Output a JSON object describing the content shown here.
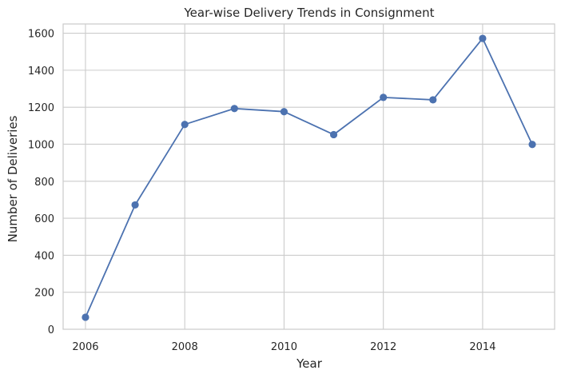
{
  "chart_data": {
    "type": "line",
    "title": "Year-wise Delivery Trends in Consignment",
    "xlabel": "Year",
    "ylabel": "Number of Deliveries",
    "x": [
      2006,
      2007,
      2008,
      2009,
      2010,
      2011,
      2012,
      2013,
      2014,
      2015
    ],
    "series": [
      {
        "values": [
          65,
          672,
          1107,
          1193,
          1176,
          1052,
          1253,
          1240,
          1572,
          999
        ]
      }
    ],
    "xlim": [
      2005.55,
      2015.45
    ],
    "ylim": [
      0,
      1650
    ],
    "xticks": [
      2006,
      2008,
      2010,
      2012,
      2014
    ],
    "yticks": [
      0,
      200,
      400,
      600,
      800,
      1000,
      1200,
      1400,
      1600
    ],
    "grid": true,
    "marker": "circle",
    "line_color": "#4c72b0",
    "grid_color": "#cccccc",
    "axes_edge_color": "#cccccc"
  }
}
